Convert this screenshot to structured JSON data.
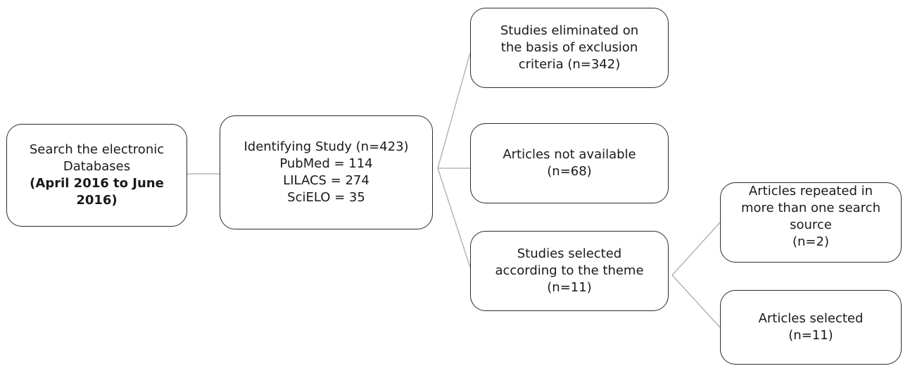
{
  "flowchart": {
    "search": {
      "lines": [
        "Search the electronic",
        "Databases"
      ],
      "bold_lines": [
        "(April 2016 to June",
        "2016)"
      ]
    },
    "identify": {
      "lines": [
        "Identifying Study (n=423)",
        "PubMed = 114",
        "LILACS = 274",
        "SciELO = 35"
      ]
    },
    "eliminated": {
      "lines": [
        "Studies eliminated on",
        "the basis of exclusion",
        "criteria (n=342)"
      ]
    },
    "not_available": {
      "lines": [
        "Articles not available",
        "(n=68)"
      ]
    },
    "selected_theme": {
      "lines": [
        "Studies selected",
        "according to the theme",
        "(n=11)"
      ]
    },
    "repeated": {
      "lines": [
        "Articles repeated in",
        "more than one search",
        "source",
        "(n=2)"
      ]
    },
    "articles_selected": {
      "lines": [
        "Articles selected",
        "(n=11)"
      ]
    }
  },
  "colors": {
    "border": "#2b2b2b",
    "connector": "#b5b5b5",
    "text": "#1a1a1a",
    "background": "#ffffff"
  }
}
